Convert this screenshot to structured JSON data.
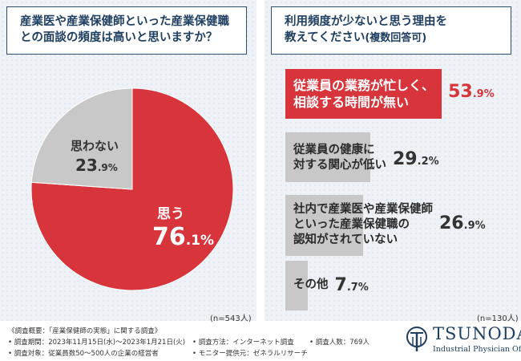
{
  "left": {
    "question_line1": "産業医や産業保健師といった産業保健職",
    "question_line2": "との面談の頻度は高いと思いますか？",
    "n": "(n=543人)"
  },
  "right": {
    "question_line1": "利用頻度が少ないと思う理由を",
    "question_line2": "教えてください",
    "question_note": "(複数回答可)",
    "n": "(n=130人)"
  },
  "chart_data": [
    {
      "type": "pie",
      "title": "産業医や産業保健師といった産業保健職との面談の頻度は高いと思いますか？",
      "slices": [
        {
          "label": "思う",
          "value": 76.1,
          "color": "#d7343b"
        },
        {
          "label": "思わない",
          "value": 23.9,
          "color": "#c8c8c8"
        }
      ]
    },
    {
      "type": "bar",
      "orientation": "horizontal",
      "title": "利用頻度が少ないと思う理由を教えてください(複数回答可)",
      "categories": [
        "従業員の業務が忙しく、相談する時間が無い",
        "従業員の健康に対する関心が低い",
        "社内で産業医や産業保健師といった産業保健職の認知がされていない",
        "その他"
      ],
      "category_lines": [
        [
          "従業員の業務が忙しく、",
          "相談する時間が無い"
        ],
        [
          "従業員の健康に",
          "対する関心が低い"
        ],
        [
          "社内で産業医や産業保健師",
          "といった産業保健職の",
          "認知がされていない"
        ],
        [
          "その他"
        ]
      ],
      "values": [
        53.9,
        29.2,
        26.9,
        7.7
      ],
      "colors": [
        "#d7343b",
        "#c8c8c8",
        "#c8c8c8",
        "#c8c8c8"
      ],
      "unit": "%"
    }
  ],
  "footer": {
    "survey_title": "《調査概要：「産業保健師の実態」に関する調査》",
    "period": "• 調査期間：2023年11月15日(水)～2023年1月21日(火)",
    "target": "• 調査対象：従業員数50～500人の企業の経営者",
    "method": "• 調査方法：インターネット調査",
    "provider": "• モニター提供元：ゼネラルリサーチ",
    "respondents": "• 調査人数：769人"
  },
  "logo": {
    "name": "TSUNODA",
    "subtitle": "Industrial Physician Office",
    "color": "#1f3f60"
  }
}
